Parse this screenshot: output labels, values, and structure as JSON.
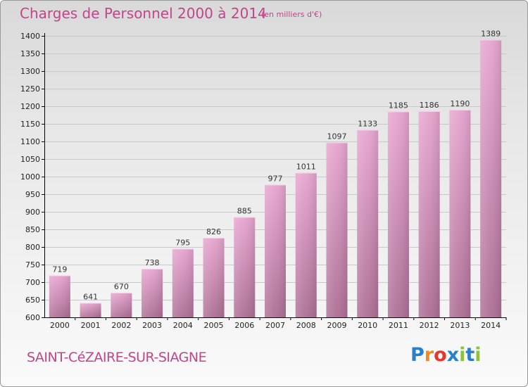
{
  "title": "Charges de Personnel 2000 à 2014",
  "subtitle": "(en milliers d'€)",
  "location": "SAINT-CéZAIRE-SUR-SIAGNE",
  "logo": {
    "letters": [
      {
        "ch": "P",
        "color": "#2a7fc9"
      },
      {
        "ch": "r",
        "color": "#f08a1c"
      },
      {
        "ch": "o",
        "color": "#e5362b"
      },
      {
        "ch": "x",
        "color": "#2a7fc9"
      },
      {
        "ch": "i",
        "color": "#8cc23f"
      },
      {
        "ch": "t",
        "color": "#2a7fc9"
      },
      {
        "ch": "i",
        "color": "#8cc23f"
      }
    ]
  },
  "colors": {
    "accent": "#c2448a",
    "bar_top": "#e7a5cf",
    "bar_bottom": "#ad6f95",
    "grid": "#c8c8c8",
    "axis": "#000000"
  },
  "chart_data": {
    "type": "bar",
    "categories": [
      "2000",
      "2001",
      "2002",
      "2003",
      "2004",
      "2005",
      "2006",
      "2007",
      "2008",
      "2009",
      "2010",
      "2011",
      "2012",
      "2013",
      "2014"
    ],
    "values": [
      719,
      641,
      670,
      738,
      795,
      826,
      885,
      977,
      1011,
      1097,
      1133,
      1185,
      1186,
      1190,
      1389
    ],
    "ylim": [
      600,
      1400
    ],
    "yticks": [
      600,
      650,
      700,
      750,
      800,
      850,
      900,
      950,
      1000,
      1050,
      1100,
      1150,
      1200,
      1250,
      1300,
      1350,
      1400
    ],
    "grid": true,
    "legend": "none"
  }
}
